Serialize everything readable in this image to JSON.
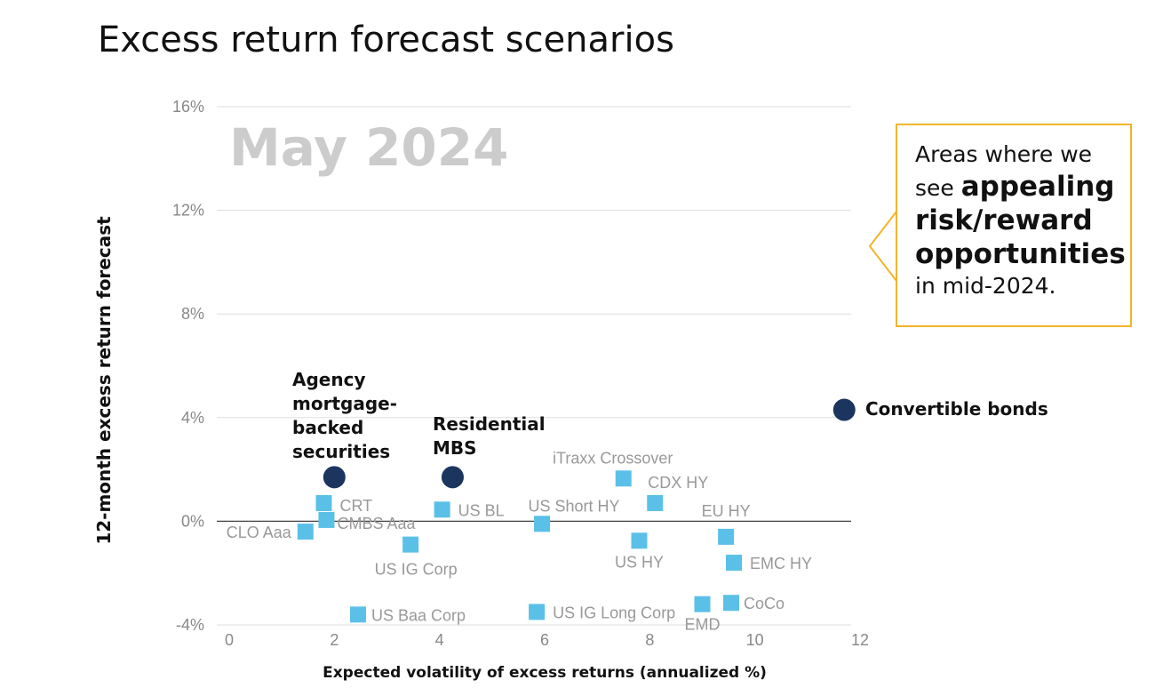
{
  "title": "Excess return forecast scenarios",
  "colors": {
    "highlight": "#1c355e",
    "other": "#5bc0e8",
    "callout_border": "#f2b52a",
    "watermark": "#cccccc",
    "axis_text": "#888888",
    "grid": "#dddddd"
  },
  "callout": {
    "line1": "Areas where we",
    "see": "see ",
    "emphasis_1": "appealing",
    "emphasis_2": "risk/reward",
    "emphasis_3": "opportunities",
    "line_end": "in mid-2024."
  },
  "chart_data": {
    "type": "scatter",
    "title": "Excess return forecast scenarios",
    "watermark": "May 2024",
    "xlabel": "Expected volatility of excess returns (annualized %)",
    "ylabel": "12-month excess return forecast",
    "xlim": [
      0,
      12
    ],
    "ylim": [
      -4,
      16
    ],
    "x_ticks": [
      0,
      2,
      4,
      6,
      8,
      10,
      12
    ],
    "y_ticks": [
      -4,
      0,
      4,
      8,
      12,
      16
    ],
    "y_tick_labels": [
      "-4%",
      "0%",
      "4%",
      "8%",
      "12%",
      "16%"
    ],
    "grid": "horizontal",
    "series": [
      {
        "group": "highlighted",
        "marker": "circle",
        "points": [
          {
            "label": "Agency mortgage-backed securities",
            "label_lines": [
              "Agency",
              "mortgage-",
              "backed",
              "securities"
            ],
            "x": 2.0,
            "y": 1.7
          },
          {
            "label": "Residential MBS",
            "label_lines": [
              "Residential",
              "MBS"
            ],
            "x": 4.25,
            "y": 1.7
          },
          {
            "label": "Convertible bonds",
            "label_lines": [
              "Convertible bonds"
            ],
            "x": 11.7,
            "y": 4.3
          }
        ]
      },
      {
        "group": "other",
        "marker": "square",
        "points": [
          {
            "label": "CLO Aaa",
            "x": 1.45,
            "y": -0.4
          },
          {
            "label": "CRT",
            "x": 1.8,
            "y": 0.7
          },
          {
            "label": "CMBS Aaa",
            "x": 1.85,
            "y": 0.05
          },
          {
            "label": "US BL",
            "x": 4.05,
            "y": 0.45
          },
          {
            "label": "US IG Corp",
            "x": 3.45,
            "y": -0.9
          },
          {
            "label": "US Baa Corp",
            "x": 2.45,
            "y": -3.6
          },
          {
            "label": "US Short HY",
            "x": 5.95,
            "y": -0.1
          },
          {
            "label": "US IG Long Corp",
            "x": 5.85,
            "y": -3.5
          },
          {
            "label": "iTraxx Crossover",
            "x": 7.5,
            "y": 1.65
          },
          {
            "label": "CDX HY",
            "x": 8.1,
            "y": 0.7
          },
          {
            "label": "US HY",
            "x": 7.8,
            "y": -0.75
          },
          {
            "label": "EU HY",
            "x": 9.45,
            "y": -0.6
          },
          {
            "label": "EMC HY",
            "x": 9.6,
            "y": -1.6
          },
          {
            "label": "EMD",
            "x": 9.0,
            "y": -3.2
          },
          {
            "label": "CoCo",
            "x": 9.55,
            "y": -3.15
          }
        ]
      }
    ]
  }
}
